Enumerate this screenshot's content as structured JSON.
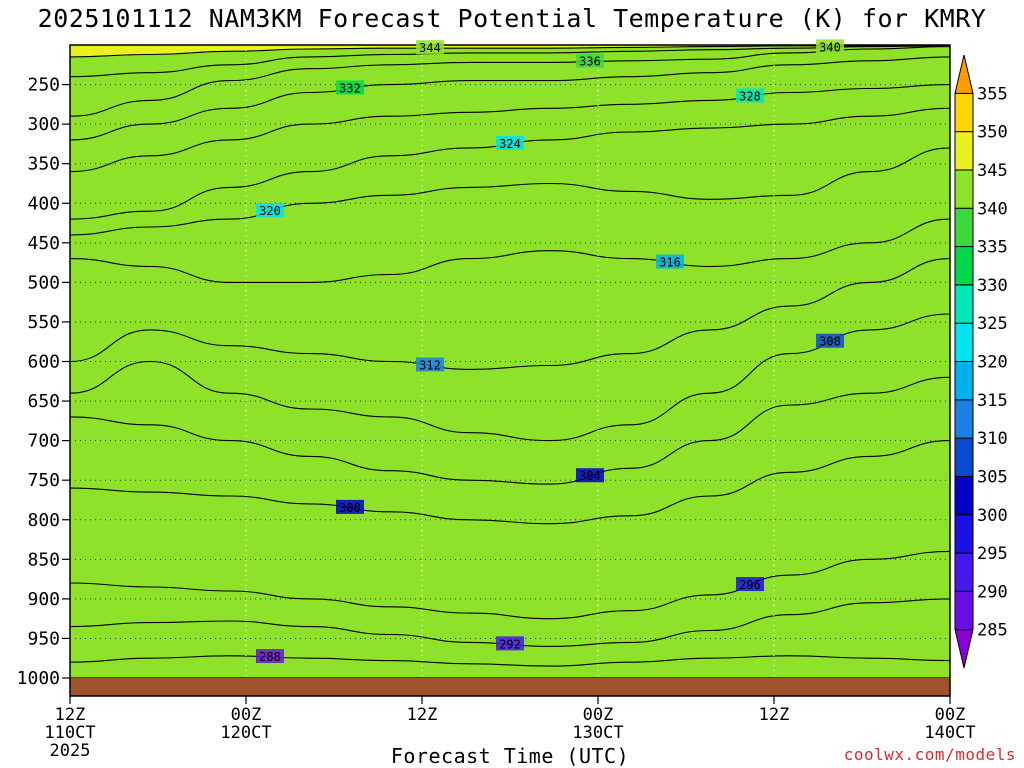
{
  "title": "2025101112 NAM3KM Forecast Potential Temperature (K) for KMRY",
  "x_axis_title": "Forecast Time (UTC)",
  "credit": "coolwx.com/models",
  "chart_data": {
    "type": "heatmap",
    "variable": "Potential Temperature (K)",
    "y_axis": {
      "scale": "pressure (inverted)",
      "range": [
        1000,
        200
      ],
      "tick_labels": [
        "250",
        "300",
        "350",
        "400",
        "450",
        "500",
        "550",
        "600",
        "650",
        "700",
        "750",
        "800",
        "850",
        "900",
        "950",
        "1000"
      ],
      "ticks": [
        250,
        300,
        350,
        400,
        450,
        500,
        550,
        600,
        650,
        700,
        750,
        800,
        850,
        900,
        950,
        1000
      ]
    },
    "x_axis": {
      "range_hours": [
        0,
        60
      ],
      "ticks": [
        {
          "hour": 0,
          "line1": "12Z",
          "line2": "110CT",
          "line3": "2025"
        },
        {
          "hour": 12,
          "line1": "00Z",
          "line2": "120CT",
          "line3": ""
        },
        {
          "hour": 24,
          "line1": "12Z",
          "line2": "",
          "line3": ""
        },
        {
          "hour": 36,
          "line1": "00Z",
          "line2": "130CT",
          "line3": ""
        },
        {
          "hour": 48,
          "line1": "12Z",
          "line2": "",
          "line3": ""
        },
        {
          "hour": 60,
          "line1": "00Z",
          "line2": "140CT",
          "line3": ""
        }
      ]
    },
    "grid": true,
    "colorbar": {
      "levels": [
        285,
        290,
        295,
        300,
        305,
        310,
        315,
        320,
        325,
        330,
        335,
        340,
        345,
        350,
        355
      ],
      "labels": [
        "285",
        "290",
        "295",
        "300",
        "305",
        "310",
        "315",
        "320",
        "325",
        "330",
        "335",
        "340",
        "345",
        "350",
        "355"
      ],
      "colors": [
        "#8a00d6",
        "#6a10e4",
        "#4418ee",
        "#1a10e6",
        "#0000c8",
        "#0a4ad0",
        "#1a80e6",
        "#00b2ec",
        "#00e2ec",
        "#00e6b8",
        "#00d84a",
        "#3cd83c",
        "#8ee22a",
        "#e8f020",
        "#ffd400",
        "#ff9a00"
      ],
      "extend": "both"
    },
    "isentropes": [
      {
        "theta": 288,
        "label": "288",
        "pressure": [
          980,
          975,
          972,
          975,
          978,
          982,
          985,
          980,
          975,
          972,
          975,
          978
        ]
      },
      {
        "theta": 292,
        "label": "292",
        "pressure": [
          935,
          930,
          928,
          935,
          945,
          955,
          960,
          955,
          940,
          920,
          905,
          900
        ]
      },
      {
        "theta": 296,
        "label": "296",
        "pressure": [
          880,
          885,
          890,
          900,
          910,
          918,
          925,
          915,
          895,
          870,
          850,
          840
        ]
      },
      {
        "theta": 300,
        "label": "300",
        "pressure": [
          760,
          765,
          770,
          780,
          790,
          800,
          805,
          795,
          770,
          740,
          720,
          700
        ]
      },
      {
        "theta": 304,
        "label": "304",
        "pressure": [
          670,
          680,
          700,
          720,
          738,
          750,
          755,
          735,
          700,
          655,
          640,
          620
        ]
      },
      {
        "theta": 308,
        "label": "308",
        "pressure": [
          640,
          600,
          640,
          660,
          670,
          690,
          700,
          680,
          640,
          590,
          560,
          540
        ]
      },
      {
        "theta": 312,
        "label": "312",
        "pressure": [
          600,
          560,
          580,
          590,
          600,
          610,
          605,
          590,
          560,
          530,
          500,
          470
        ]
      },
      {
        "theta": 316,
        "label": "316",
        "pressure": [
          470,
          480,
          500,
          500,
          490,
          470,
          460,
          470,
          480,
          470,
          450,
          420
        ]
      },
      {
        "theta": 320,
        "label": "320",
        "pressure": [
          440,
          430,
          420,
          400,
          390,
          380,
          375,
          385,
          395,
          390,
          360,
          330
        ]
      },
      {
        "theta": 324,
        "label": "324",
        "pressure": [
          420,
          410,
          380,
          360,
          340,
          330,
          320,
          310,
          305,
          300,
          290,
          280
        ]
      },
      {
        "theta": 328,
        "label": "328",
        "pressure": [
          360,
          340,
          320,
          300,
          290,
          285,
          280,
          275,
          270,
          260,
          255,
          250
        ]
      },
      {
        "theta": 332,
        "label": "332",
        "pressure": [
          320,
          300,
          280,
          260,
          250,
          245,
          245,
          240,
          235,
          225,
          220,
          215
        ]
      },
      {
        "theta": 336,
        "label": "336",
        "pressure": [
          290,
          270,
          245,
          230,
          225,
          222,
          222,
          220,
          218,
          210,
          205,
          202
        ]
      },
      {
        "theta": 340,
        "label": "340",
        "pressure": [
          240,
          235,
          225,
          215,
          212,
          210,
          210,
          208,
          206,
          204,
          202,
          201
        ]
      },
      {
        "theta": 344,
        "label": "344",
        "pressure": [
          215,
          212,
          208,
          205,
          204,
          204,
          204,
          203,
          202,
          201,
          201,
          200
        ]
      }
    ]
  }
}
